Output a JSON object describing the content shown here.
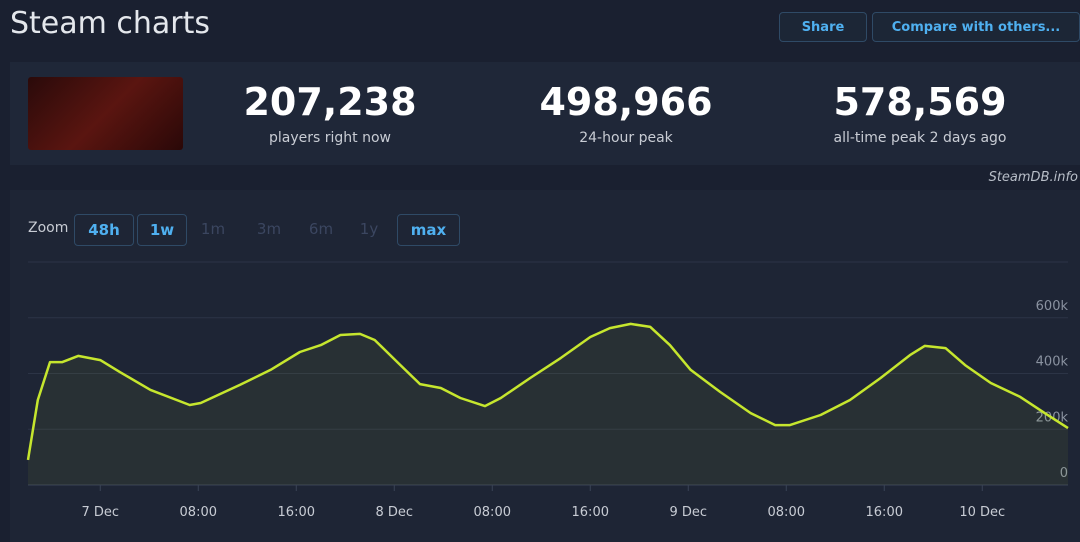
{
  "header": {
    "title": "Steam charts",
    "buttons": [
      "Share",
      "Compare with others..."
    ]
  },
  "stats": [
    {
      "value": "207,238",
      "label": "players right now"
    },
    {
      "value": "498,966",
      "label": "24-hour peak"
    },
    {
      "value": "578,569",
      "label": "all-time peak 2 days ago"
    }
  ],
  "credit": "SteamDB.info",
  "zoom": {
    "label": "Zoom",
    "options": [
      "48h",
      "1w",
      "1m",
      "3m",
      "6m",
      "1y",
      "max"
    ],
    "active": [
      "48h",
      "1w",
      "max"
    ]
  },
  "chart_data": {
    "type": "line",
    "color": "#c6e62e",
    "x": [
      -5.9,
      -5.1,
      -4.1,
      -3.1,
      -1.8,
      0,
      1.6,
      4.1,
      7.3,
      8.2,
      11.4,
      13.9,
      16.3,
      18,
      19.6,
      21.2,
      22.4,
      24.5,
      26.1,
      27.8,
      29.4,
      31.4,
      32.7,
      35.1,
      37.6,
      40,
      41.6,
      43.3,
      44.9,
      46.5,
      48.2,
      50.6,
      53.1,
      55.1,
      56.3,
      58.8,
      61.2,
      63.7,
      66.1,
      67.3,
      69,
      70.6,
      72.7,
      75.1,
      77.1,
      79
    ],
    "series": [
      {
        "name": "Players",
        "color": "#c6e62e",
        "values": [
          90000,
          305000,
          441000,
          441000,
          463000,
          448000,
          405000,
          341000,
          287000,
          294000,
          359000,
          413000,
          477000,
          502000,
          538000,
          542000,
          520000,
          430000,
          362000,
          348000,
          312000,
          283000,
          312000,
          384000,
          456000,
          531000,
          563000,
          578000,
          567000,
          502000,
          413000,
          334000,
          258000,
          215000,
          215000,
          251000,
          305000,
          384000,
          466000,
          499000,
          491000,
          430000,
          366000,
          316000,
          258000,
          204000
        ]
      }
    ],
    "xlim": [
      -5.9,
      79
    ],
    "xticks": [
      {
        "value": 0,
        "label": "7 Dec"
      },
      {
        "value": 8,
        "label": "08:00"
      },
      {
        "value": 16,
        "label": "16:00"
      },
      {
        "value": 24,
        "label": "8 Dec"
      },
      {
        "value": 32,
        "label": "08:00"
      },
      {
        "value": 40,
        "label": "16:00"
      },
      {
        "value": 48,
        "label": "9 Dec"
      },
      {
        "value": 56,
        "label": "08:00"
      },
      {
        "value": 64,
        "label": "16:00"
      },
      {
        "value": 72,
        "label": "10 Dec"
      }
    ],
    "ylim": [
      0,
      800000
    ],
    "yticks": [
      0,
      {
        "value": 200000,
        "label": "200k"
      },
      {
        "value": 400000,
        "label": "400k"
      },
      {
        "value": 600000,
        "label": "600k"
      }
    ],
    "grid": true
  }
}
